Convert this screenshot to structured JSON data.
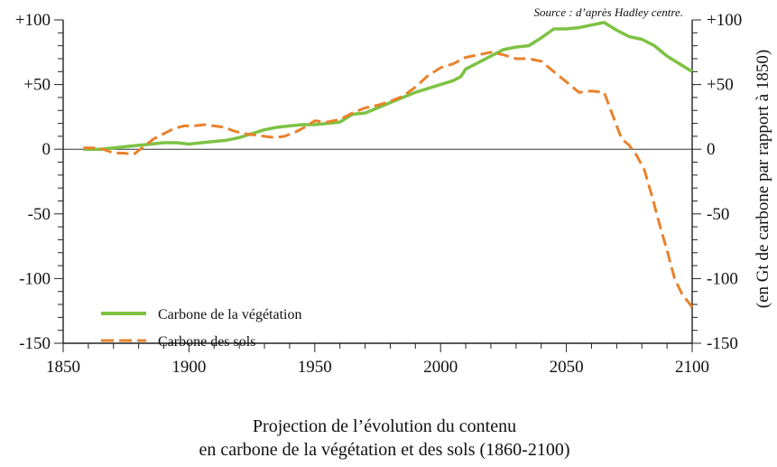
{
  "chart_data": {
    "type": "line",
    "title": "",
    "source": "Source : d’après Hadley centre.",
    "caption": [
      "Projection de l’évolution du contenu",
      "en carbone de la végétation et des sols (1860-2100)"
    ],
    "xlabel": "",
    "ylabel_right": "(en Gt de carbone par rapport à 1850)",
    "xlim": [
      1850,
      2100
    ],
    "ylim": [
      -150,
      100
    ],
    "x_ticks": [
      {
        "value": 1850,
        "label": "1850"
      },
      {
        "value": 1900,
        "label": "1900"
      },
      {
        "value": 1950,
        "label": "1950"
      },
      {
        "value": 2000,
        "label": "2000"
      },
      {
        "value": 2050,
        "label": "2050"
      },
      {
        "value": 2100,
        "label": "2100"
      }
    ],
    "y_ticks_left": [
      {
        "value": 100,
        "label": "+100"
      },
      {
        "value": 50,
        "label": "+50"
      },
      {
        "value": 0,
        "label": "0"
      },
      {
        "value": -50,
        "label": "-50"
      },
      {
        "value": -100,
        "label": "-100"
      },
      {
        "value": -150,
        "label": "-150"
      }
    ],
    "y_ticks_right": [
      {
        "value": 100,
        "label": "+100"
      },
      {
        "value": 50,
        "label": "+50"
      },
      {
        "value": 0,
        "label": "0"
      },
      {
        "value": -50,
        "label": "-50"
      },
      {
        "value": -100,
        "label": "-100"
      },
      {
        "value": -150,
        "label": "-150"
      }
    ],
    "zero_line": true,
    "grid": false,
    "legend_position": "bottom-left",
    "series": [
      {
        "name": "Carbone de la végétation",
        "color": "#7dc243",
        "style": "solid",
        "x": [
          1858,
          1865,
          1870,
          1875,
          1880,
          1885,
          1890,
          1895,
          1900,
          1905,
          1910,
          1915,
          1920,
          1925,
          1930,
          1935,
          1940,
          1945,
          1950,
          1955,
          1960,
          1965,
          1970,
          1975,
          1980,
          1985,
          1990,
          1995,
          2000,
          2005,
          2008,
          2010,
          2015,
          2020,
          2025,
          2030,
          2035,
          2040,
          2045,
          2050,
          2055,
          2060,
          2065,
          2070,
          2075,
          2080,
          2085,
          2090,
          2095,
          2100
        ],
        "y": [
          0,
          0,
          1,
          2,
          3,
          4,
          5,
          5,
          4,
          5,
          6,
          7,
          9,
          12,
          15,
          17,
          18,
          19,
          19,
          20,
          21,
          27,
          28,
          32,
          36,
          40,
          44,
          47,
          50,
          53,
          56,
          62,
          67,
          72,
          77,
          79,
          80,
          86,
          93,
          93,
          94,
          96,
          98,
          92,
          87,
          85,
          80,
          72,
          66,
          60
        ]
      },
      {
        "name": "Carbone des sols",
        "color": "#e8822c",
        "style": "dashed",
        "x": [
          1858,
          1862,
          1866,
          1870,
          1874,
          1878,
          1882,
          1886,
          1890,
          1894,
          1898,
          1902,
          1906,
          1910,
          1914,
          1918,
          1922,
          1926,
          1930,
          1934,
          1938,
          1942,
          1946,
          1950,
          1955,
          1960,
          1965,
          1970,
          1975,
          1980,
          1985,
          1990,
          1995,
          2000,
          2005,
          2010,
          2015,
          2020,
          2025,
          2030,
          2035,
          2040,
          2045,
          2050,
          2055,
          2060,
          2065,
          2070,
          2072,
          2075,
          2078,
          2081,
          2084,
          2087,
          2090,
          2093,
          2096,
          2100
        ],
        "y": [
          1,
          1,
          0,
          -3,
          -3,
          -4,
          2,
          8,
          12,
          16,
          18,
          18,
          19,
          18,
          17,
          14,
          12,
          11,
          10,
          9,
          10,
          13,
          17,
          22,
          21,
          23,
          28,
          32,
          34,
          37,
          41,
          48,
          57,
          63,
          66,
          71,
          73,
          75,
          73,
          70,
          70,
          68,
          60,
          52,
          44,
          45,
          44,
          18,
          8,
          3,
          -5,
          -16,
          -36,
          -58,
          -78,
          -100,
          -112,
          -122
        ]
      }
    ]
  }
}
